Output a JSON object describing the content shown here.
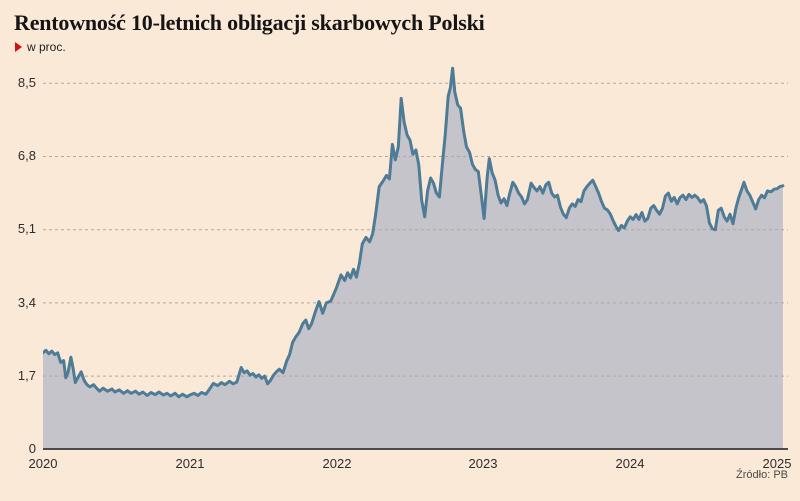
{
  "header": {
    "title": "Rentowność 10-letnich obligacji skarbowych Polski",
    "subtitle": "w proc.",
    "bullet_color": "#d21113"
  },
  "source": "Źródło: PB",
  "chart_data": {
    "type": "area",
    "title": "Rentowność 10-letnich obligacji skarbowych Polski",
    "ylabel": "w proc.",
    "xlabel": "",
    "x_ticks": [
      "2020",
      "2021",
      "2022",
      "2023",
      "2024",
      "2025"
    ],
    "y_ticks": [
      0,
      1.7,
      3.4,
      5.1,
      6.8,
      8.5
    ],
    "y_tick_labels": [
      "0",
      "1,7",
      "3,4",
      "5,1",
      "6,8",
      "8,5"
    ],
    "xlim": [
      2020,
      2025.06
    ],
    "ylim": [
      0,
      9.0
    ],
    "grid": "dashed-horizontal",
    "legend": "none",
    "colors": {
      "background": "#fbe9d7",
      "fill": "#c5c4cb",
      "line": "#4e7b95",
      "grid": "#b2a69c",
      "axis": "#4b4b4b"
    },
    "series": [
      {
        "name": "Rentowność 10-letnich obligacji skarbowych Polski (proc.)",
        "points": [
          [
            0.0,
            2.24
          ],
          [
            0.02,
            2.3
          ],
          [
            0.04,
            2.22
          ],
          [
            0.06,
            2.28
          ],
          [
            0.08,
            2.2
          ],
          [
            0.1,
            2.24
          ],
          [
            0.12,
            2.02
          ],
          [
            0.14,
            2.06
          ],
          [
            0.155,
            1.66
          ],
          [
            0.17,
            1.78
          ],
          [
            0.19,
            2.14
          ],
          [
            0.205,
            1.88
          ],
          [
            0.22,
            1.55
          ],
          [
            0.24,
            1.68
          ],
          [
            0.26,
            1.8
          ],
          [
            0.28,
            1.6
          ],
          [
            0.3,
            1.5
          ],
          [
            0.32,
            1.45
          ],
          [
            0.345,
            1.5
          ],
          [
            0.365,
            1.42
          ],
          [
            0.385,
            1.35
          ],
          [
            0.41,
            1.42
          ],
          [
            0.44,
            1.35
          ],
          [
            0.47,
            1.4
          ],
          [
            0.49,
            1.33
          ],
          [
            0.52,
            1.38
          ],
          [
            0.55,
            1.3
          ],
          [
            0.575,
            1.36
          ],
          [
            0.6,
            1.3
          ],
          [
            0.63,
            1.35
          ],
          [
            0.655,
            1.28
          ],
          [
            0.68,
            1.33
          ],
          [
            0.71,
            1.25
          ],
          [
            0.735,
            1.32
          ],
          [
            0.765,
            1.27
          ],
          [
            0.79,
            1.33
          ],
          [
            0.82,
            1.26
          ],
          [
            0.845,
            1.3
          ],
          [
            0.87,
            1.24
          ],
          [
            0.9,
            1.3
          ],
          [
            0.925,
            1.22
          ],
          [
            0.95,
            1.28
          ],
          [
            0.98,
            1.22
          ],
          [
            1.0,
            1.26
          ],
          [
            1.03,
            1.3
          ],
          [
            1.055,
            1.25
          ],
          [
            1.08,
            1.32
          ],
          [
            1.11,
            1.28
          ],
          [
            1.135,
            1.4
          ],
          [
            1.16,
            1.53
          ],
          [
            1.19,
            1.48
          ],
          [
            1.215,
            1.55
          ],
          [
            1.24,
            1.5
          ],
          [
            1.27,
            1.58
          ],
          [
            1.295,
            1.52
          ],
          [
            1.32,
            1.56
          ],
          [
            1.35,
            1.9
          ],
          [
            1.37,
            1.78
          ],
          [
            1.39,
            1.82
          ],
          [
            1.41,
            1.72
          ],
          [
            1.43,
            1.76
          ],
          [
            1.45,
            1.68
          ],
          [
            1.47,
            1.73
          ],
          [
            1.49,
            1.65
          ],
          [
            1.51,
            1.7
          ],
          [
            1.53,
            1.52
          ],
          [
            1.55,
            1.6
          ],
          [
            1.57,
            1.72
          ],
          [
            1.59,
            1.8
          ],
          [
            1.61,
            1.86
          ],
          [
            1.635,
            1.78
          ],
          [
            1.66,
            2.05
          ],
          [
            1.68,
            2.2
          ],
          [
            1.7,
            2.48
          ],
          [
            1.72,
            2.6
          ],
          [
            1.745,
            2.72
          ],
          [
            1.77,
            2.92
          ],
          [
            1.79,
            3.0
          ],
          [
            1.81,
            2.8
          ],
          [
            1.83,
            2.92
          ],
          [
            1.855,
            3.19
          ],
          [
            1.88,
            3.43
          ],
          [
            1.905,
            3.16
          ],
          [
            1.93,
            3.4
          ],
          [
            1.96,
            3.44
          ],
          [
            1.98,
            3.6
          ],
          [
            2.0,
            3.76
          ],
          [
            2.03,
            4.05
          ],
          [
            2.055,
            3.92
          ],
          [
            2.075,
            4.1
          ],
          [
            2.095,
            3.98
          ],
          [
            2.115,
            4.18
          ],
          [
            2.135,
            4.0
          ],
          [
            2.155,
            4.32
          ],
          [
            2.175,
            4.77
          ],
          [
            2.2,
            4.92
          ],
          [
            2.225,
            4.82
          ],
          [
            2.245,
            5.0
          ],
          [
            2.265,
            5.43
          ],
          [
            2.29,
            6.1
          ],
          [
            2.315,
            6.22
          ],
          [
            2.34,
            6.36
          ],
          [
            2.36,
            6.28
          ],
          [
            2.38,
            7.08
          ],
          [
            2.4,
            6.72
          ],
          [
            2.42,
            7.02
          ],
          [
            2.44,
            8.15
          ],
          [
            2.46,
            7.6
          ],
          [
            2.48,
            7.3
          ],
          [
            2.5,
            7.18
          ],
          [
            2.52,
            6.85
          ],
          [
            2.54,
            6.95
          ],
          [
            2.56,
            6.6
          ],
          [
            2.58,
            5.78
          ],
          [
            2.6,
            5.4
          ],
          [
            2.62,
            6.0
          ],
          [
            2.64,
            6.3
          ],
          [
            2.66,
            6.18
          ],
          [
            2.68,
            5.95
          ],
          [
            2.7,
            5.86
          ],
          [
            2.72,
            6.6
          ],
          [
            2.74,
            7.3
          ],
          [
            2.76,
            8.2
          ],
          [
            2.775,
            8.4
          ],
          [
            2.79,
            8.85
          ],
          [
            2.805,
            8.3
          ],
          [
            2.825,
            8.0
          ],
          [
            2.845,
            7.92
          ],
          [
            2.865,
            7.4
          ],
          [
            2.885,
            7.02
          ],
          [
            2.905,
            6.9
          ],
          [
            2.925,
            6.62
          ],
          [
            2.945,
            6.5
          ],
          [
            2.965,
            6.45
          ],
          [
            2.985,
            5.92
          ],
          [
            3.005,
            5.36
          ],
          [
            3.025,
            6.3
          ],
          [
            3.04,
            6.75
          ],
          [
            3.06,
            6.42
          ],
          [
            3.08,
            6.25
          ],
          [
            3.1,
            5.9
          ],
          [
            3.12,
            5.72
          ],
          [
            3.14,
            5.82
          ],
          [
            3.16,
            5.66
          ],
          [
            3.18,
            5.95
          ],
          [
            3.2,
            6.2
          ],
          [
            3.22,
            6.1
          ],
          [
            3.24,
            5.95
          ],
          [
            3.26,
            5.86
          ],
          [
            3.28,
            5.7
          ],
          [
            3.3,
            5.8
          ],
          [
            3.325,
            6.18
          ],
          [
            3.345,
            6.08
          ],
          [
            3.365,
            6.0
          ],
          [
            3.385,
            6.1
          ],
          [
            3.405,
            5.95
          ],
          [
            3.425,
            6.14
          ],
          [
            3.445,
            6.2
          ],
          [
            3.465,
            5.95
          ],
          [
            3.485,
            5.86
          ],
          [
            3.505,
            5.9
          ],
          [
            3.525,
            5.62
          ],
          [
            3.545,
            5.46
          ],
          [
            3.565,
            5.38
          ],
          [
            3.585,
            5.6
          ],
          [
            3.605,
            5.7
          ],
          [
            3.625,
            5.64
          ],
          [
            3.645,
            5.8
          ],
          [
            3.665,
            5.75
          ],
          [
            3.685,
            6.0
          ],
          [
            3.705,
            6.1
          ],
          [
            3.73,
            6.2
          ],
          [
            3.745,
            6.25
          ],
          [
            3.765,
            6.1
          ],
          [
            3.785,
            5.95
          ],
          [
            3.805,
            5.75
          ],
          [
            3.825,
            5.6
          ],
          [
            3.845,
            5.56
          ],
          [
            3.865,
            5.46
          ],
          [
            3.885,
            5.3
          ],
          [
            3.905,
            5.16
          ],
          [
            3.92,
            5.08
          ],
          [
            3.94,
            5.2
          ],
          [
            3.96,
            5.14
          ],
          [
            3.98,
            5.3
          ],
          [
            4.0,
            5.4
          ],
          [
            4.02,
            5.34
          ],
          [
            4.04,
            5.45
          ],
          [
            4.06,
            5.34
          ],
          [
            4.08,
            5.5
          ],
          [
            4.1,
            5.3
          ],
          [
            4.12,
            5.36
          ],
          [
            4.14,
            5.6
          ],
          [
            4.16,
            5.66
          ],
          [
            4.18,
            5.55
          ],
          [
            4.2,
            5.46
          ],
          [
            4.22,
            5.6
          ],
          [
            4.24,
            5.88
          ],
          [
            4.26,
            5.95
          ],
          [
            4.28,
            5.76
          ],
          [
            4.3,
            5.85
          ],
          [
            4.32,
            5.7
          ],
          [
            4.34,
            5.85
          ],
          [
            4.36,
            5.9
          ],
          [
            4.38,
            5.8
          ],
          [
            4.4,
            5.92
          ],
          [
            4.42,
            5.85
          ],
          [
            4.44,
            5.9
          ],
          [
            4.46,
            5.84
          ],
          [
            4.48,
            5.74
          ],
          [
            4.5,
            5.8
          ],
          [
            4.52,
            5.65
          ],
          [
            4.54,
            5.25
          ],
          [
            4.56,
            5.12
          ],
          [
            4.58,
            5.1
          ],
          [
            4.6,
            5.55
          ],
          [
            4.62,
            5.6
          ],
          [
            4.64,
            5.4
          ],
          [
            4.66,
            5.3
          ],
          [
            4.68,
            5.46
          ],
          [
            4.7,
            5.24
          ],
          [
            4.72,
            5.6
          ],
          [
            4.74,
            5.85
          ],
          [
            4.76,
            6.05
          ],
          [
            4.775,
            6.2
          ],
          [
            4.795,
            6.0
          ],
          [
            4.815,
            5.9
          ],
          [
            4.835,
            5.74
          ],
          [
            4.855,
            5.58
          ],
          [
            4.875,
            5.8
          ],
          [
            4.895,
            5.9
          ],
          [
            4.915,
            5.84
          ],
          [
            4.935,
            6.0
          ],
          [
            4.96,
            5.98
          ],
          [
            4.98,
            6.04
          ],
          [
            5.0,
            6.05
          ],
          [
            5.02,
            6.1
          ],
          [
            5.04,
            6.12
          ]
        ]
      }
    ]
  }
}
